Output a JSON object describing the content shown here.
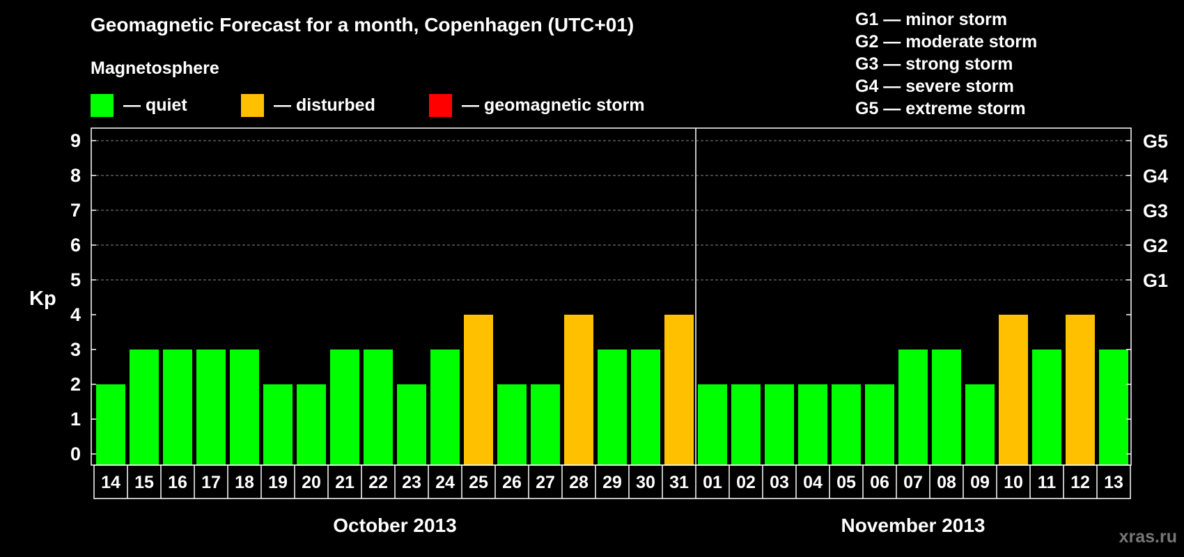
{
  "title": "Geomagnetic Forecast for a month, Copenhagen (UTC+01)",
  "subtitle": "Magnetosphere",
  "legend": [
    {
      "label": "— quiet",
      "color": "#00ff00"
    },
    {
      "label": "— disturbed",
      "color": "#ffc000"
    },
    {
      "label": "— geomagnetic storm",
      "color": "#ff0000"
    }
  ],
  "g_legend": [
    "G1 — minor storm",
    "G2 — moderate storm",
    "G3 — strong storm",
    "G4 — severe storm",
    "G5 — extreme storm"
  ],
  "watermark": "xras.ru",
  "chart_data": {
    "type": "bar",
    "ylabel": "Kp",
    "ylim": [
      0,
      9
    ],
    "yticks": [
      "0",
      "1",
      "2",
      "3",
      "4",
      "5",
      "6",
      "7",
      "8",
      "9"
    ],
    "right_labels": [
      {
        "y": 5,
        "label": "G1"
      },
      {
        "y": 6,
        "label": "G2"
      },
      {
        "y": 7,
        "label": "G3"
      },
      {
        "y": 8,
        "label": "G4"
      },
      {
        "y": 9,
        "label": "G5"
      }
    ],
    "grid": true,
    "categories": [
      "14",
      "15",
      "16",
      "17",
      "18",
      "19",
      "20",
      "21",
      "22",
      "23",
      "24",
      "25",
      "26",
      "27",
      "28",
      "29",
      "30",
      "31",
      "01",
      "02",
      "03",
      "04",
      "05",
      "06",
      "07",
      "08",
      "09",
      "10",
      "11",
      "12",
      "13"
    ],
    "values": [
      2,
      3,
      3,
      3,
      3,
      2,
      2,
      3,
      3,
      2,
      3,
      4,
      2,
      2,
      4,
      3,
      3,
      4,
      2,
      2,
      2,
      2,
      2,
      2,
      3,
      3,
      2,
      4,
      3,
      4,
      3
    ],
    "levels": [
      "quiet",
      "quiet",
      "quiet",
      "quiet",
      "quiet",
      "quiet",
      "quiet",
      "quiet",
      "quiet",
      "quiet",
      "quiet",
      "disturbed",
      "quiet",
      "quiet",
      "disturbed",
      "quiet",
      "quiet",
      "disturbed",
      "quiet",
      "quiet",
      "quiet",
      "quiet",
      "quiet",
      "quiet",
      "quiet",
      "quiet",
      "quiet",
      "disturbed",
      "quiet",
      "disturbed",
      "quiet"
    ],
    "level_colors": {
      "quiet": "#00ff00",
      "disturbed": "#ffc000",
      "storm": "#ff0000"
    },
    "months": [
      {
        "label": "October 2013",
        "start": 0,
        "end": 17
      },
      {
        "label": "November 2013",
        "start": 18,
        "end": 30
      }
    ]
  }
}
